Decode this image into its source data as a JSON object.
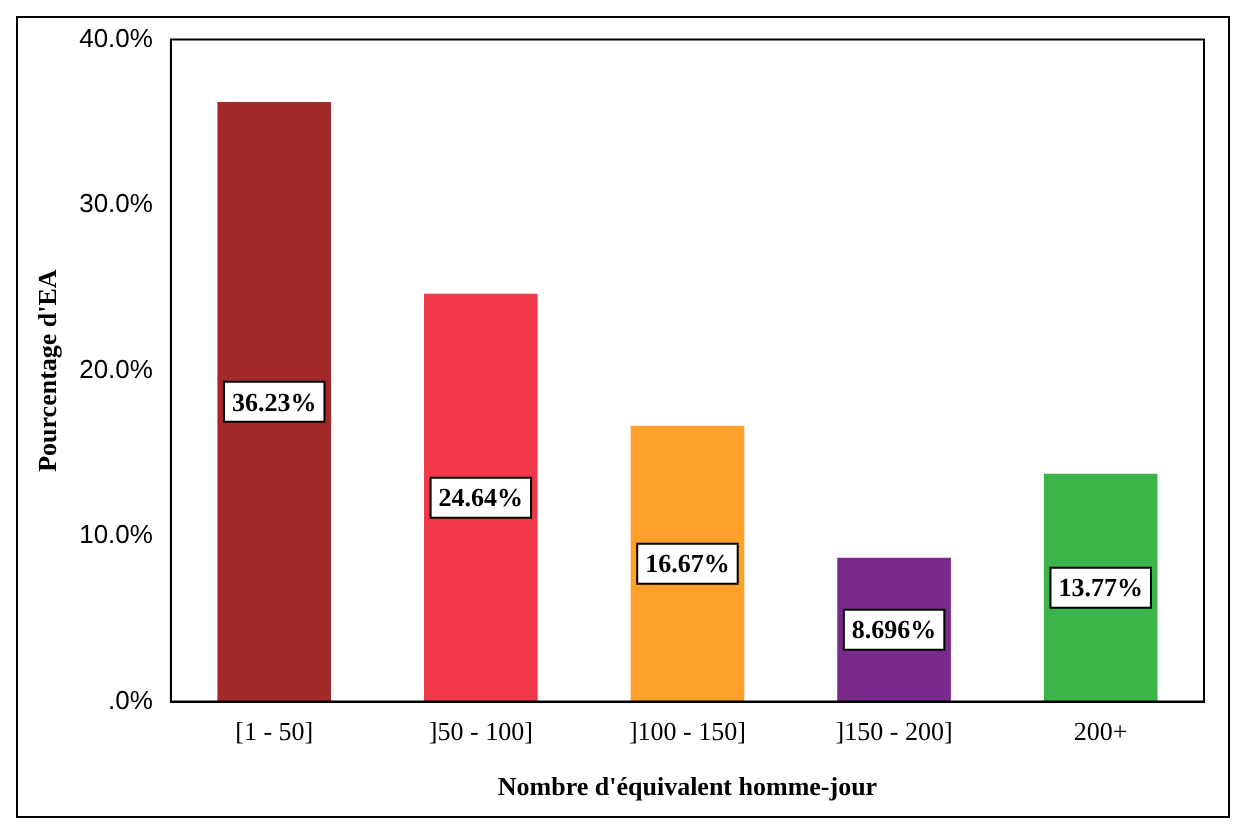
{
  "chart_data": {
    "type": "bar",
    "xlabel": "Nombre d'équivalent homme-jour",
    "ylabel": "Pourcentage d'EA",
    "categories": [
      "[1 - 50]",
      "]50 - 100]",
      "]100 - 150]",
      "]150 - 200]",
      "200+"
    ],
    "values": [
      36.23,
      24.64,
      16.67,
      8.696,
      13.77
    ],
    "colors": [
      "#a32a2a",
      "#f0384a",
      "#ffa02a",
      "#7a2a8a",
      "#3cb44a"
    ],
    "value_labels": [
      "36.23%",
      "24.64%",
      "16.67%",
      "8.696%",
      "13.77%"
    ],
    "ylim": [
      0,
      40
    ],
    "yticks": [
      {
        "value": 0,
        "label": ".0%"
      },
      {
        "value": 10,
        "label": "10.0%"
      },
      {
        "value": 20,
        "label": "20.0%"
      },
      {
        "value": 30,
        "label": "30.0%"
      },
      {
        "value": 40,
        "label": "40.0%"
      }
    ],
    "grid": false,
    "legend": false
  }
}
